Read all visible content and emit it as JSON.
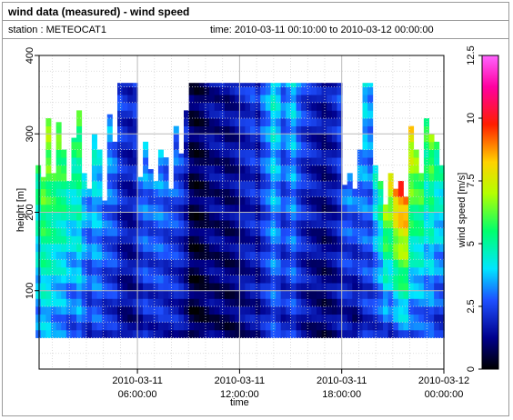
{
  "header": {
    "title": "wind data (measured) - wind speed",
    "station_label": "station : METEOCAT1",
    "time_label": "time: 2010-03-11 00:10:00 to 2010-03-12 00:00:00"
  },
  "chart_data": {
    "type": "heatmap",
    "xlabel": "time",
    "ylabel": "height [m]",
    "colorbar_label": "wind speed [m/s]",
    "x_range": [
      "2010-03-11 00:10:00",
      "2010-03-12 00:00:00"
    ],
    "ylim": [
      0,
      400
    ],
    "clim": [
      0,
      12.5
    ],
    "grid": true,
    "x_ticks": [
      {
        "hour": 6,
        "line1": "2010-03-11",
        "line2": "06:00:00"
      },
      {
        "hour": 12,
        "line1": "2010-03-11",
        "line2": "12:00:00"
      },
      {
        "hour": 18,
        "line1": "2010-03-11",
        "line2": "18:00:00"
      },
      {
        "hour": 24,
        "line1": "2010-03-12",
        "line2": "00:00:00"
      }
    ],
    "y_ticks": [
      {
        "value": 100,
        "label": "100"
      },
      {
        "value": 200,
        "label": "200"
      },
      {
        "value": 300,
        "label": "300"
      },
      {
        "value": 400,
        "label": "400"
      }
    ],
    "colorbar_ticks": [
      {
        "value": 0,
        "label": "0"
      },
      {
        "value": 2.5,
        "label": "2.5"
      },
      {
        "value": 5,
        "label": "5"
      },
      {
        "value": 7.5,
        "label": "7.5"
      },
      {
        "value": 10,
        "label": "10"
      },
      {
        "value": 12.5,
        "label": "12.5"
      }
    ],
    "colormap": [
      {
        "v": 0.0,
        "color": "#000000"
      },
      {
        "v": 0.1,
        "color": "#00008c"
      },
      {
        "v": 0.22,
        "color": "#1e50ff"
      },
      {
        "v": 0.32,
        "color": "#00e6ff"
      },
      {
        "v": 0.44,
        "color": "#00ff6e"
      },
      {
        "v": 0.56,
        "color": "#b4ff00"
      },
      {
        "v": 0.66,
        "color": "#ffd200"
      },
      {
        "v": 0.78,
        "color": "#ff1e00"
      },
      {
        "v": 0.9,
        "color": "#ff00a0"
      },
      {
        "v": 1.0,
        "color": "#ff64ff"
      }
    ],
    "profile_heights_m": [
      40,
      365
    ],
    "time_columns_h": [
      0.17,
      0.47,
      0.77,
      1.07,
      1.37,
      1.67,
      1.97,
      2.27,
      2.57,
      2.87,
      3.17,
      3.47,
      3.77,
      4.07,
      4.37,
      4.67,
      4.97,
      5.27,
      5.57,
      5.87,
      6.17,
      6.47,
      6.77,
      7.07,
      7.37,
      7.67,
      7.97,
      8.27,
      8.57,
      8.87,
      9.17,
      9.47,
      9.77,
      10.07,
      10.37,
      10.67,
      10.97,
      11.27,
      11.57,
      11.87,
      12.17,
      12.47,
      12.77,
      13.07,
      13.37,
      13.67,
      13.97,
      14.27,
      14.57,
      14.87,
      15.17,
      15.47,
      15.77,
      16.07,
      16.37,
      16.67,
      16.97,
      17.27,
      17.57,
      17.87,
      18.17,
      18.47,
      18.77,
      19.07,
      19.37,
      19.67,
      19.97,
      20.27,
      20.57,
      20.87,
      21.17,
      21.47,
      21.77,
      22.07,
      22.37,
      22.67,
      22.97,
      23.27,
      23.57,
      23.87
    ],
    "column_top_height_m": [
      260,
      245,
      320,
      250,
      315,
      280,
      240,
      295,
      330,
      250,
      230,
      300,
      280,
      215,
      325,
      290,
      365,
      365,
      365,
      365,
      245,
      290,
      255,
      240,
      280,
      270,
      230,
      310,
      275,
      330,
      365,
      365,
      365,
      365,
      365,
      365,
      365,
      365,
      365,
      365,
      365,
      365,
      365,
      365,
      365,
      365,
      365,
      365,
      365,
      365,
      365,
      365,
      365,
      365,
      365,
      365,
      365,
      365,
      365,
      365,
      235,
      250,
      230,
      280,
      365,
      365,
      260,
      240,
      210,
      250,
      230,
      240,
      220,
      310,
      280,
      250,
      320,
      300,
      290,
      260
    ],
    "column_speed_upper_ms": [
      5.5,
      6.5,
      7,
      6,
      6.5,
      6,
      5,
      5.5,
      6,
      4,
      3.5,
      4.5,
      4,
      3,
      3.5,
      3,
      2.5,
      2.2,
      2.0,
      2.3,
      3.0,
      3.5,
      3.0,
      3.2,
      3.5,
      3.0,
      2.8,
      3.0,
      2.5,
      2.0,
      0.8,
      0.7,
      0.9,
      1.2,
      1.5,
      1.4,
      1.6,
      1.3,
      1.5,
      1.7,
      2.0,
      2.2,
      2.5,
      2.0,
      3.0,
      3.5,
      4.5,
      4.0,
      3.0,
      3.5,
      4.0,
      3.0,
      2.5,
      2.2,
      2.0,
      1.8,
      1.5,
      1.8,
      2.0,
      2.5,
      3.0,
      3.5,
      3.0,
      3.5,
      4.0,
      3.5,
      4.5,
      5.5,
      7,
      8,
      9,
      10,
      9.5,
      8,
      7,
      6.5,
      6,
      6.5,
      5.5,
      5
    ],
    "column_speed_lower_ms": [
      3.0,
      3.5,
      3.5,
      3.0,
      3.0,
      3.0,
      2.5,
      2.5,
      3.0,
      2.5,
      2.0,
      2.5,
      2.5,
      2.0,
      2.0,
      2.0,
      1.5,
      1.3,
      1.2,
      1.4,
      1.5,
      2.0,
      1.8,
      1.8,
      2.0,
      1.8,
      1.7,
      1.8,
      1.5,
      1.2,
      0.6,
      0.5,
      0.6,
      0.8,
      1.0,
      0.9,
      1.0,
      0.8,
      0.9,
      1.0,
      1.2,
      1.4,
      1.5,
      1.3,
      1.8,
      2.0,
      2.5,
      2.2,
      1.8,
      2.0,
      2.3,
      1.8,
      1.5,
      1.3,
      1.2,
      1.1,
      0.9,
      1.1,
      1.2,
      1.5,
      1.5,
      1.3,
      1.0,
      1.5,
      2.0,
      2.0,
      2.0,
      2.2,
      2.5,
      2.0,
      2.5,
      3.0,
      3.0,
      2.5,
      2.5,
      2.5,
      2.5,
      2.5,
      2.0,
      2.0
    ]
  }
}
